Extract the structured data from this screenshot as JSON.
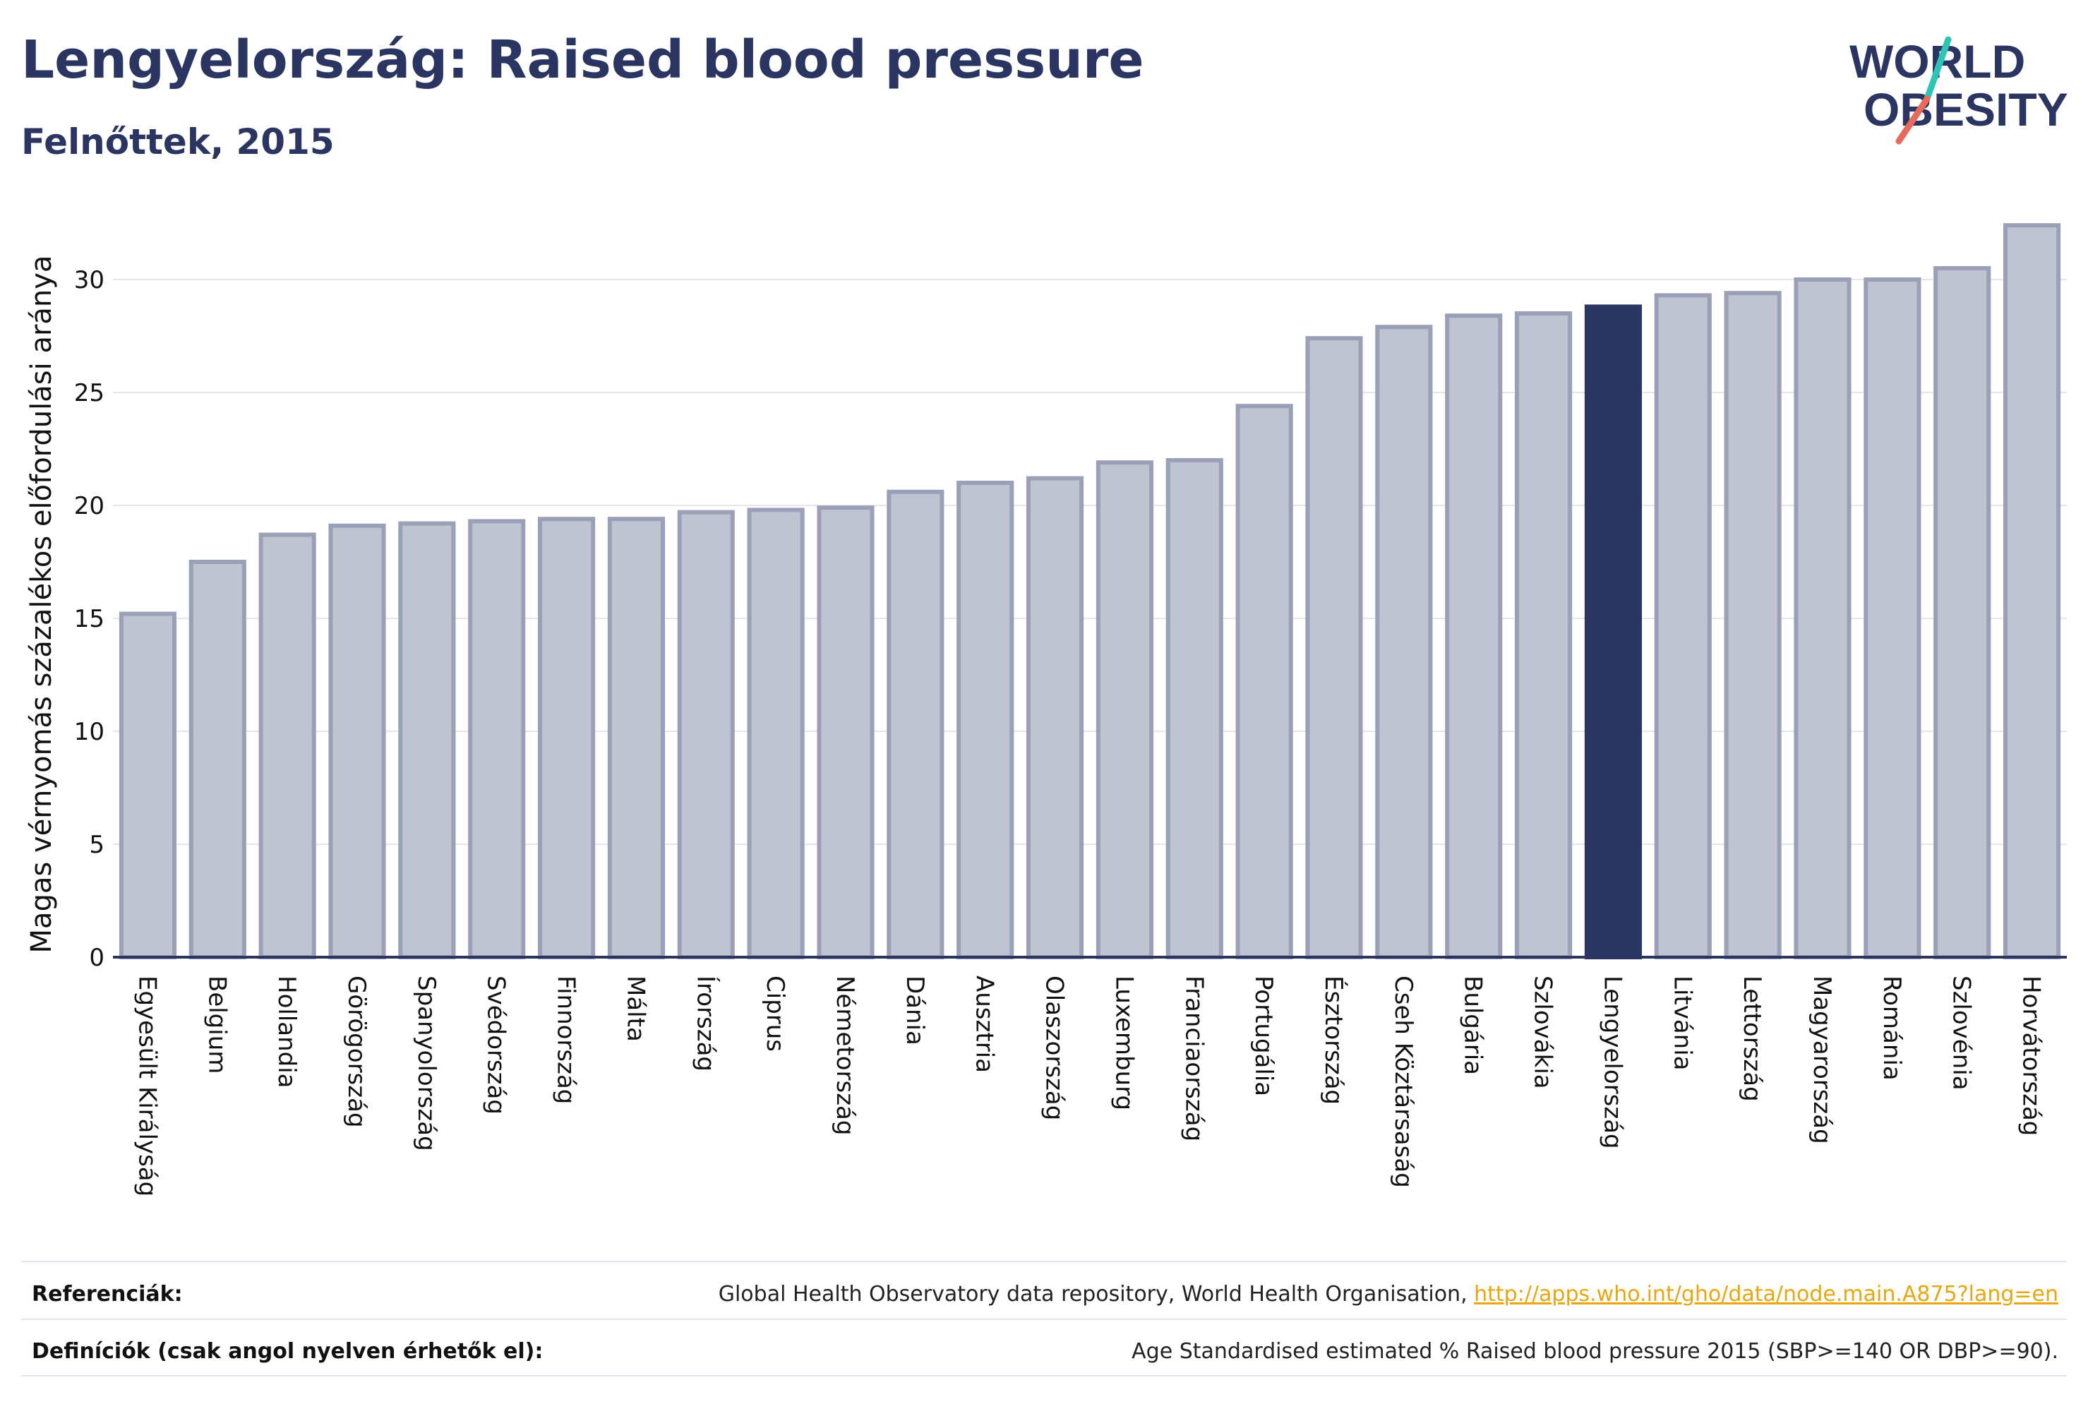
{
  "header": {
    "title": "Lengyelország: Raised blood pressure",
    "subtitle": "Felnőttek, 2015"
  },
  "logo": {
    "line1": "WORLD",
    "line2": "OBESITY"
  },
  "colors": {
    "bar_fill": "#c0c3d0",
    "bar_stroke": "#9aa0b8",
    "highlight": "#2b3561",
    "grid": "#e6e7ec",
    "axis": "#2b3561",
    "text": "#111111",
    "link": "#e8a711",
    "logo_slash_teal": "#2ec4b6",
    "logo_slash_red": "#e86a5a"
  },
  "chart_data": {
    "type": "bar",
    "ylabel": "Magas vérnyomás százalékos előfordulási aránya",
    "xlabel": "",
    "ylim": [
      0,
      33
    ],
    "yticks": [
      0,
      5,
      10,
      15,
      20,
      25,
      30
    ],
    "grid": true,
    "highlight": "Lengyelország",
    "categories": [
      "Egyesült Királyság",
      "Belgium",
      "Hollandia",
      "Görögország",
      "Spanyolország",
      "Svédország",
      "Finnország",
      "Málta",
      "Írország",
      "Ciprus",
      "Németország",
      "Dánia",
      "Ausztria",
      "Olaszország",
      "Luxemburg",
      "Franciaország",
      "Portugália",
      "Észtország",
      "Cseh Köztársaság",
      "Bulgária",
      "Szlovákia",
      "Lengyelország",
      "Litvánia",
      "Lettország",
      "Magyarország",
      "Románia",
      "Szlovénia",
      "Horvátország"
    ],
    "values": [
      15.2,
      17.5,
      18.7,
      19.1,
      19.2,
      19.3,
      19.4,
      19.4,
      19.7,
      19.8,
      19.9,
      20.6,
      21.0,
      21.2,
      21.9,
      22.0,
      24.4,
      27.4,
      27.9,
      28.4,
      28.5,
      28.8,
      29.3,
      29.4,
      30.0,
      30.0,
      30.5,
      32.4
    ]
  },
  "footer": {
    "references_label": "Referenciák:",
    "references_text": "Global Health Observatory data repository, World Health Organisation, ",
    "references_link": "http://apps.who.int/gho/data/node.main.A875?lang=en",
    "definitions_label": "Definíciók (csak angol nyelven érhetők el):",
    "definitions_text": "Age Standardised estimated % Raised blood pressure 2015 (SBP>=140 OR DBP>=90)."
  }
}
